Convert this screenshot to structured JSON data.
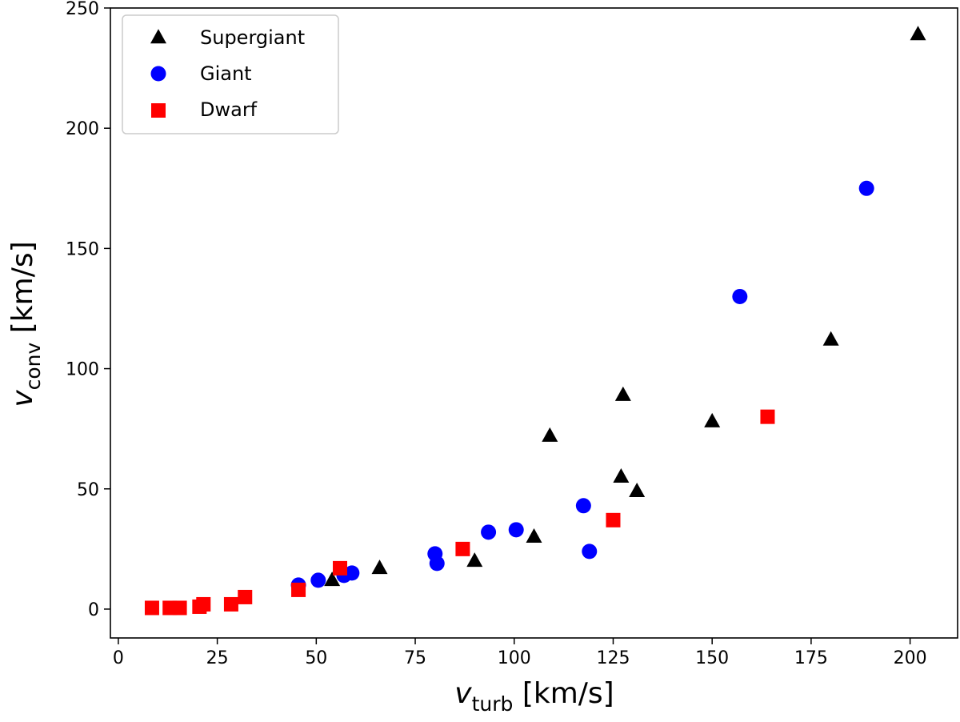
{
  "chart_data": {
    "type": "scatter",
    "title": "",
    "xlabel": {
      "symbol": "v",
      "subscript": "turb",
      "unit": " [km/s]"
    },
    "ylabel": {
      "symbol": "v",
      "subscript": "conv",
      "unit": " [km/s]"
    },
    "xlim": [
      -2,
      212
    ],
    "ylim": [
      -12,
      250
    ],
    "xticks": [
      0,
      25,
      50,
      75,
      100,
      125,
      150,
      175,
      200
    ],
    "yticks": [
      0,
      50,
      100,
      150,
      200,
      250
    ],
    "xtick_labels": [
      "0",
      "25",
      "50",
      "75",
      "100",
      "125",
      "150",
      "175",
      "200"
    ],
    "ytick_labels": [
      "0",
      "50",
      "100",
      "150",
      "200",
      "250"
    ],
    "grid": false,
    "legend_position": "top-left",
    "series": [
      {
        "name": "Supergiant",
        "marker": "triangle",
        "color": "#000000",
        "points": [
          [
            202,
            239
          ],
          [
            180,
            112
          ],
          [
            150,
            78
          ],
          [
            127.5,
            89
          ],
          [
            127,
            55
          ],
          [
            131,
            49
          ],
          [
            109,
            72
          ],
          [
            105,
            30
          ],
          [
            90,
            20
          ],
          [
            66,
            17
          ],
          [
            54,
            12
          ]
        ]
      },
      {
        "name": "Giant",
        "marker": "circle",
        "color": "#0000ff",
        "points": [
          [
            189,
            175
          ],
          [
            157,
            130
          ],
          [
            117.5,
            43
          ],
          [
            119,
            24
          ],
          [
            100.5,
            33
          ],
          [
            93.5,
            32
          ],
          [
            80,
            23
          ],
          [
            80.5,
            19
          ],
          [
            59,
            15
          ],
          [
            57,
            14
          ],
          [
            50.5,
            12
          ],
          [
            45.5,
            10
          ]
        ]
      },
      {
        "name": "Dwarf",
        "marker": "square",
        "color": "#ff0000",
        "points": [
          [
            164,
            80
          ],
          [
            125,
            37
          ],
          [
            87,
            25
          ],
          [
            56,
            17
          ],
          [
            45.5,
            8
          ],
          [
            32,
            5
          ],
          [
            28.5,
            2
          ],
          [
            21.5,
            2
          ],
          [
            20.5,
            1
          ],
          [
            15.5,
            0.5
          ],
          [
            13,
            0.5
          ],
          [
            8.5,
            0.5
          ]
        ]
      }
    ]
  }
}
